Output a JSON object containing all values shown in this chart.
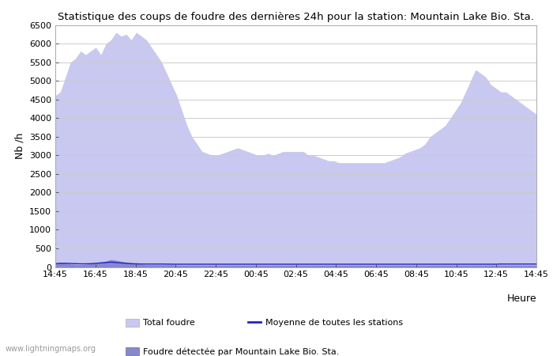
{
  "title": "Statistique des coups de foudre des dernières 24h pour la station: Mountain Lake Bio. Sta.",
  "xlabel": "Heure",
  "ylabel": "Nb /h",
  "ylim": [
    0,
    6500
  ],
  "yticks": [
    0,
    500,
    1000,
    1500,
    2000,
    2500,
    3000,
    3500,
    4000,
    4500,
    5000,
    5500,
    6000,
    6500
  ],
  "x_labels": [
    "14:45",
    "16:45",
    "18:45",
    "20:45",
    "22:45",
    "00:45",
    "02:45",
    "04:45",
    "06:45",
    "08:45",
    "10:45",
    "12:45",
    "14:45"
  ],
  "color_total": "#c8c8f0",
  "color_local": "#8888cc",
  "color_mean": "#2222cc",
  "color_bg": "#ffffff",
  "watermark": "www.lightningmaps.org",
  "legend_labels": [
    "Total foudre",
    "Moyenne de toutes les stations",
    "Foudre détectée par Mountain Lake Bio. Sta."
  ],
  "total_foudre": [
    4600,
    4700,
    5100,
    5500,
    5600,
    5800,
    5700,
    5800,
    5900,
    5700,
    6000,
    6100,
    6300,
    6200,
    6250,
    6100,
    6300,
    6200,
    6100,
    5900,
    5700,
    5500,
    5200,
    4900,
    4600,
    4200,
    3800,
    3500,
    3300,
    3100,
    3050,
    3000,
    3000,
    3050,
    3100,
    3150,
    3200,
    3150,
    3100,
    3050,
    3000,
    3000,
    3050,
    3000,
    3050,
    3100,
    3100,
    3100,
    3100,
    3100,
    3000,
    3000,
    2950,
    2900,
    2850,
    2850,
    2800,
    2800,
    2800,
    2800,
    2800,
    2800,
    2800,
    2800,
    2800,
    2800,
    2850,
    2900,
    2950,
    3050,
    3100,
    3150,
    3200,
    3300,
    3500,
    3600,
    3700,
    3800,
    4000,
    4200,
    4400,
    4700,
    5000,
    5300,
    5200,
    5100,
    4900,
    4800,
    4700,
    4700,
    4600,
    4500,
    4400,
    4300,
    4200,
    4100
  ],
  "local_foudre": [
    80,
    120,
    100,
    80,
    70,
    60,
    70,
    90,
    110,
    130,
    160,
    200,
    180,
    150,
    130,
    110,
    90,
    70,
    60,
    60,
    60,
    60,
    60,
    60,
    50,
    50,
    50,
    50,
    50,
    50,
    50,
    50,
    50,
    50,
    50,
    50,
    50,
    50,
    50,
    50,
    50,
    50,
    50,
    50,
    50,
    50,
    50,
    50,
    50,
    50,
    50,
    50,
    50,
    50,
    50,
    50,
    50,
    50,
    50,
    50,
    50,
    50,
    50,
    50,
    50,
    50,
    50,
    50,
    50,
    50,
    50,
    50,
    50,
    50,
    50,
    50,
    50,
    50,
    50,
    50,
    50,
    50,
    50,
    50,
    50,
    50,
    50,
    50,
    50,
    50,
    50,
    50,
    50,
    50,
    50,
    50
  ],
  "mean_foudre": [
    90,
    100,
    100,
    95,
    90,
    85,
    85,
    90,
    100,
    110,
    120,
    130,
    120,
    110,
    100,
    90,
    85,
    80,
    80,
    80,
    80,
    80,
    78,
    76,
    75,
    75,
    75,
    75,
    75,
    75,
    75,
    75,
    75,
    75,
    75,
    75,
    75,
    75,
    75,
    75,
    75,
    75,
    75,
    75,
    75,
    75,
    75,
    75,
    75,
    75,
    75,
    75,
    75,
    75,
    75,
    75,
    75,
    75,
    75,
    75,
    75,
    75,
    75,
    75,
    75,
    75,
    75,
    75,
    75,
    75,
    75,
    75,
    75,
    75,
    75,
    75,
    75,
    75,
    75,
    75,
    75,
    75,
    75,
    75,
    75,
    75,
    75,
    75,
    80,
    80,
    80,
    80,
    80,
    80,
    80,
    80
  ]
}
